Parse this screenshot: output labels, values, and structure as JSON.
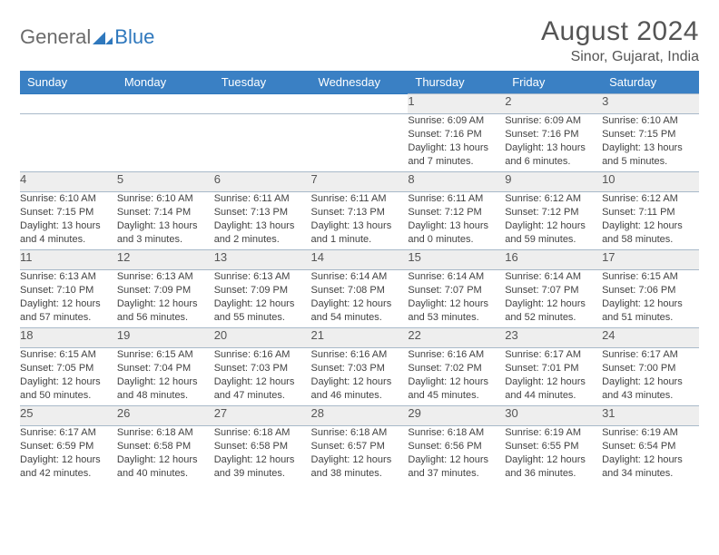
{
  "brand": {
    "part1": "General",
    "part2": "Blue"
  },
  "title": "August 2024",
  "location": "Sinor, Gujarat, India",
  "dayNames": [
    "Sunday",
    "Monday",
    "Tuesday",
    "Wednesday",
    "Thursday",
    "Friday",
    "Saturday"
  ],
  "colors": {
    "headerBg": "#3a80c4",
    "dayStripe": "#eeeeee",
    "ruleBlue": "#2f78bd",
    "text": "#424242"
  },
  "weeks": [
    [
      null,
      null,
      null,
      null,
      {
        "n": "1",
        "sr": "6:09 AM",
        "ss": "7:16 PM",
        "dl": "13 hours and 7 minutes."
      },
      {
        "n": "2",
        "sr": "6:09 AM",
        "ss": "7:16 PM",
        "dl": "13 hours and 6 minutes."
      },
      {
        "n": "3",
        "sr": "6:10 AM",
        "ss": "7:15 PM",
        "dl": "13 hours and 5 minutes."
      }
    ],
    [
      {
        "n": "4",
        "sr": "6:10 AM",
        "ss": "7:15 PM",
        "dl": "13 hours and 4 minutes."
      },
      {
        "n": "5",
        "sr": "6:10 AM",
        "ss": "7:14 PM",
        "dl": "13 hours and 3 minutes."
      },
      {
        "n": "6",
        "sr": "6:11 AM",
        "ss": "7:13 PM",
        "dl": "13 hours and 2 minutes."
      },
      {
        "n": "7",
        "sr": "6:11 AM",
        "ss": "7:13 PM",
        "dl": "13 hours and 1 minute."
      },
      {
        "n": "8",
        "sr": "6:11 AM",
        "ss": "7:12 PM",
        "dl": "13 hours and 0 minutes."
      },
      {
        "n": "9",
        "sr": "6:12 AM",
        "ss": "7:12 PM",
        "dl": "12 hours and 59 minutes."
      },
      {
        "n": "10",
        "sr": "6:12 AM",
        "ss": "7:11 PM",
        "dl": "12 hours and 58 minutes."
      }
    ],
    [
      {
        "n": "11",
        "sr": "6:13 AM",
        "ss": "7:10 PM",
        "dl": "12 hours and 57 minutes."
      },
      {
        "n": "12",
        "sr": "6:13 AM",
        "ss": "7:09 PM",
        "dl": "12 hours and 56 minutes."
      },
      {
        "n": "13",
        "sr": "6:13 AM",
        "ss": "7:09 PM",
        "dl": "12 hours and 55 minutes."
      },
      {
        "n": "14",
        "sr": "6:14 AM",
        "ss": "7:08 PM",
        "dl": "12 hours and 54 minutes."
      },
      {
        "n": "15",
        "sr": "6:14 AM",
        "ss": "7:07 PM",
        "dl": "12 hours and 53 minutes."
      },
      {
        "n": "16",
        "sr": "6:14 AM",
        "ss": "7:07 PM",
        "dl": "12 hours and 52 minutes."
      },
      {
        "n": "17",
        "sr": "6:15 AM",
        "ss": "7:06 PM",
        "dl": "12 hours and 51 minutes."
      }
    ],
    [
      {
        "n": "18",
        "sr": "6:15 AM",
        "ss": "7:05 PM",
        "dl": "12 hours and 50 minutes."
      },
      {
        "n": "19",
        "sr": "6:15 AM",
        "ss": "7:04 PM",
        "dl": "12 hours and 48 minutes."
      },
      {
        "n": "20",
        "sr": "6:16 AM",
        "ss": "7:03 PM",
        "dl": "12 hours and 47 minutes."
      },
      {
        "n": "21",
        "sr": "6:16 AM",
        "ss": "7:03 PM",
        "dl": "12 hours and 46 minutes."
      },
      {
        "n": "22",
        "sr": "6:16 AM",
        "ss": "7:02 PM",
        "dl": "12 hours and 45 minutes."
      },
      {
        "n": "23",
        "sr": "6:17 AM",
        "ss": "7:01 PM",
        "dl": "12 hours and 44 minutes."
      },
      {
        "n": "24",
        "sr": "6:17 AM",
        "ss": "7:00 PM",
        "dl": "12 hours and 43 minutes."
      }
    ],
    [
      {
        "n": "25",
        "sr": "6:17 AM",
        "ss": "6:59 PM",
        "dl": "12 hours and 42 minutes."
      },
      {
        "n": "26",
        "sr": "6:18 AM",
        "ss": "6:58 PM",
        "dl": "12 hours and 40 minutes."
      },
      {
        "n": "27",
        "sr": "6:18 AM",
        "ss": "6:58 PM",
        "dl": "12 hours and 39 minutes."
      },
      {
        "n": "28",
        "sr": "6:18 AM",
        "ss": "6:57 PM",
        "dl": "12 hours and 38 minutes."
      },
      {
        "n": "29",
        "sr": "6:18 AM",
        "ss": "6:56 PM",
        "dl": "12 hours and 37 minutes."
      },
      {
        "n": "30",
        "sr": "6:19 AM",
        "ss": "6:55 PM",
        "dl": "12 hours and 36 minutes."
      },
      {
        "n": "31",
        "sr": "6:19 AM",
        "ss": "6:54 PM",
        "dl": "12 hours and 34 minutes."
      }
    ]
  ]
}
